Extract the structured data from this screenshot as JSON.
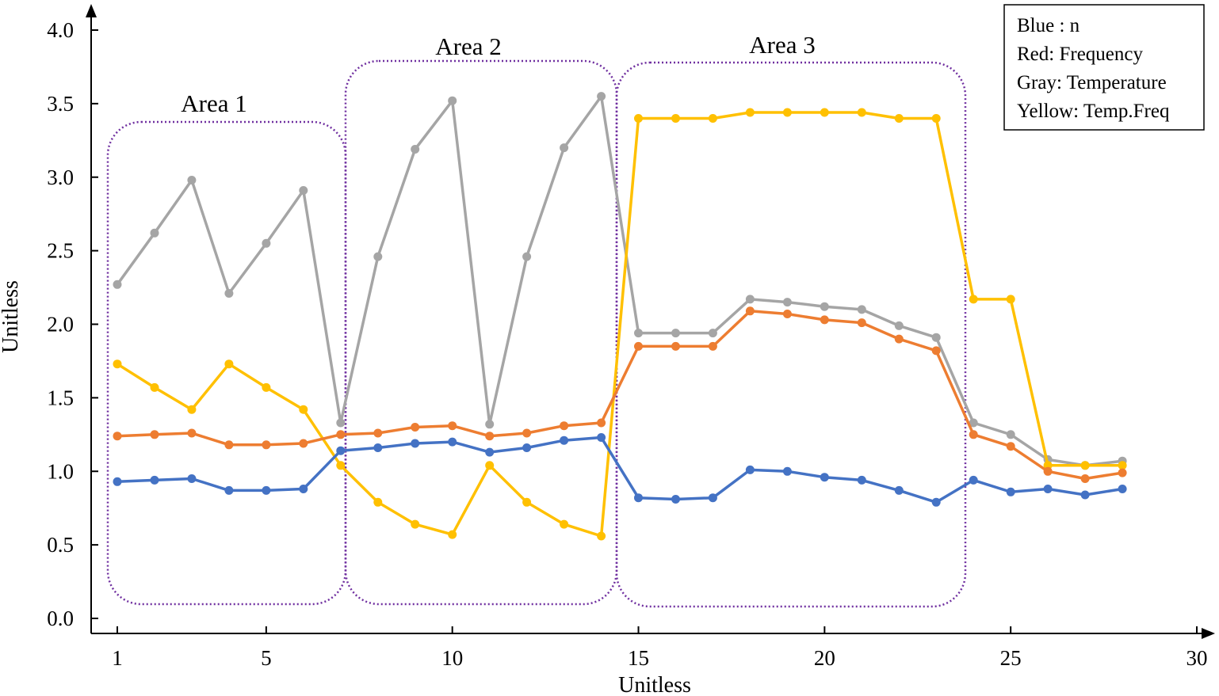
{
  "chart_data": {
    "type": "line",
    "xlabel": "Unitless",
    "ylabel": "Unitless",
    "xlim": [
      0.3,
      30
    ],
    "ylim": [
      0,
      4.1
    ],
    "xticks": [
      1,
      5,
      10,
      15,
      20,
      25,
      30
    ],
    "yticks": [
      0,
      0.5,
      1.0,
      1.5,
      2.0,
      2.5,
      3.0,
      3.5,
      4.0
    ],
    "ytick_labels": [
      "0.0",
      "0.5",
      "1.0",
      "1.5",
      "2.0",
      "2.5",
      "3.0",
      "3.5",
      "4.0"
    ],
    "grid": false,
    "legend": {
      "position": "top-right",
      "entries": [
        "Blue : n",
        "Red: Frequency",
        "Gray: Temperature",
        "Yellow: Temp.Freq"
      ]
    },
    "regions": [
      {
        "label": "Area 1",
        "x_range": [
          1,
          7
        ],
        "y_range": [
          0.1,
          3.35
        ]
      },
      {
        "label": "Area 2",
        "x_range": [
          7,
          14
        ],
        "y_range": [
          0.1,
          3.75
        ]
      },
      {
        "label": "Area 3",
        "x_range": [
          14,
          23
        ],
        "y_range": [
          0.1,
          3.75
        ]
      }
    ],
    "x": [
      1,
      2,
      3,
      4,
      5,
      6,
      7,
      8,
      9,
      10,
      11,
      12,
      13,
      14,
      15,
      16,
      17,
      18,
      19,
      20,
      21,
      22,
      23,
      24,
      25,
      26,
      27,
      28
    ],
    "series": [
      {
        "key": "gray",
        "color": "#a5a5a5",
        "values": [
          2.27,
          2.62,
          2.98,
          2.21,
          2.55,
          2.91,
          1.33,
          2.46,
          3.19,
          3.52,
          1.32,
          2.46,
          3.2,
          3.55,
          1.94,
          1.94,
          1.94,
          2.17,
          2.15,
          2.12,
          2.1,
          1.99,
          1.91,
          1.33,
          1.25,
          1.08,
          1.04,
          1.07
        ]
      },
      {
        "key": "yellow",
        "color": "#ffc000",
        "values": [
          1.73,
          1.57,
          1.42,
          1.73,
          1.57,
          1.42,
          1.04,
          0.79,
          0.64,
          0.57,
          1.04,
          0.79,
          0.64,
          0.56,
          3.4,
          3.4,
          3.4,
          3.44,
          3.44,
          3.44,
          3.44,
          3.4,
          3.4,
          2.17,
          2.17,
          1.04,
          1.04,
          1.04
        ]
      },
      {
        "key": "orange",
        "color": "#ed7d31",
        "values": [
          1.24,
          1.25,
          1.26,
          1.18,
          1.18,
          1.19,
          1.25,
          1.26,
          1.3,
          1.31,
          1.24,
          1.26,
          1.31,
          1.33,
          1.85,
          1.85,
          1.85,
          2.09,
          2.07,
          2.03,
          2.01,
          1.9,
          1.82,
          1.25,
          1.17,
          1.0,
          0.95,
          0.99
        ]
      },
      {
        "key": "blue",
        "color": "#4472c4",
        "values": [
          0.93,
          0.94,
          0.95,
          0.87,
          0.87,
          0.88,
          1.14,
          1.16,
          1.19,
          1.2,
          1.13,
          1.16,
          1.21,
          1.23,
          0.82,
          0.81,
          0.82,
          1.01,
          1.0,
          0.96,
          0.94,
          0.87,
          0.79,
          0.94,
          0.86,
          0.88,
          0.84,
          0.88
        ]
      }
    ],
    "colors": {
      "region_border": "#7030a0",
      "axis": "#000000"
    }
  }
}
